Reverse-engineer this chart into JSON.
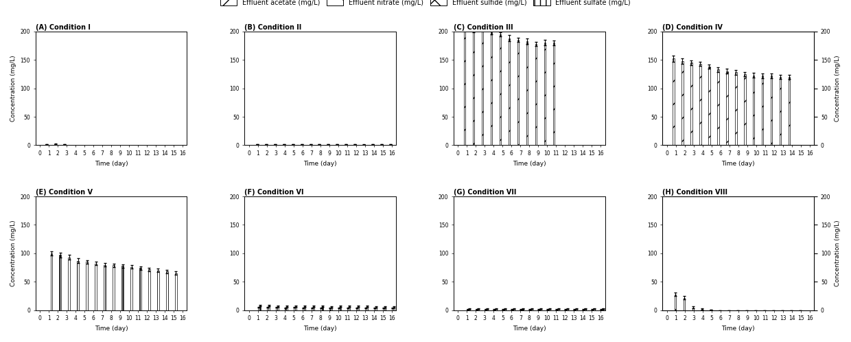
{
  "legend_labels": [
    "Effluent acetate (mg/L)",
    "Effluent nitrate (mg/L)",
    "Effluent sulfide (mg/L)",
    "Effluent sulfate (mg/L)"
  ],
  "subplot_titles": [
    "(A) Condition I",
    "(B) Condition II",
    "(C) Condition III",
    "(D) Condition IV",
    "(E) Condition V",
    "(F) Condition VI",
    "(G) Condition VII",
    "(H) Condition VIII"
  ],
  "ylim": [
    0,
    200
  ],
  "yticks": [
    0,
    50,
    100,
    150,
    200
  ],
  "xticks": [
    0,
    1,
    2,
    3,
    4,
    5,
    6,
    7,
    8,
    9,
    10,
    11,
    12,
    13,
    14,
    15,
    16
  ],
  "xlabel": "Time (day)",
  "ylabel_left": "Concentration (mg/L)",
  "ylabel_right": "Concentration (mg/L)",
  "conditions": {
    "A": {
      "days": [
        1,
        2,
        3
      ],
      "acetate": [
        1.5,
        2.0,
        1.8
      ],
      "acetate_err": [
        0.3,
        0.4,
        0.3
      ],
      "nitrate": [
        0,
        0,
        0
      ],
      "nitrate_err": [
        0,
        0,
        0
      ],
      "sulfide": [
        0,
        0,
        0
      ],
      "sulfide_err": [
        0,
        0,
        0
      ],
      "sulfate": [
        0,
        0,
        0
      ],
      "sulfate_err": [
        0,
        0,
        0
      ]
    },
    "B": {
      "days": [
        1,
        2,
        3,
        4,
        5,
        6,
        7,
        8,
        9,
        10,
        11,
        12,
        13,
        14,
        15,
        16
      ],
      "acetate": [
        0,
        0,
        0,
        0,
        0,
        0,
        0,
        0,
        0,
        0,
        0,
        0,
        0,
        0,
        0,
        0
      ],
      "acetate_err": [
        0,
        0,
        0,
        0,
        0,
        0,
        0,
        0,
        0,
        0,
        0,
        0,
        0,
        0,
        0,
        0
      ],
      "nitrate": [
        1.5,
        1.8,
        1.6,
        1.4,
        1.5,
        1.7,
        1.6,
        1.5,
        1.4,
        1.6,
        1.5,
        1.4,
        1.3,
        1.5,
        1.4,
        1.5
      ],
      "nitrate_err": [
        0.2,
        0.2,
        0.2,
        0.2,
        0.2,
        0.2,
        0.2,
        0.2,
        0.2,
        0.2,
        0.2,
        0.2,
        0.2,
        0.2,
        0.2,
        0.2
      ],
      "sulfide": [
        0,
        0,
        0,
        0,
        0,
        0,
        0,
        0,
        0,
        0,
        0,
        0,
        0,
        0,
        0,
        0
      ],
      "sulfide_err": [
        0,
        0,
        0,
        0,
        0,
        0,
        0,
        0,
        0,
        0,
        0,
        0,
        0,
        0,
        0,
        0
      ],
      "sulfate": [
        0,
        0,
        0,
        0,
        0,
        0,
        0,
        0,
        0,
        0,
        0,
        0,
        0,
        0,
        0,
        0
      ],
      "sulfate_err": [
        0,
        0,
        0,
        0,
        0,
        0,
        0,
        0,
        0,
        0,
        0,
        0,
        0,
        0,
        0,
        0
      ]
    },
    "C": {
      "days": [
        1,
        2,
        3,
        4,
        5,
        6,
        7,
        8,
        9,
        10,
        11
      ],
      "acetate": [
        210,
        202,
        208,
        200,
        195,
        188,
        185,
        183,
        178,
        180,
        180
      ],
      "acetate_err": [
        5,
        4,
        5,
        5,
        4,
        5,
        4,
        5,
        4,
        5,
        4
      ],
      "nitrate": [
        0,
        0,
        0,
        0,
        0,
        0,
        0,
        0,
        0,
        0,
        0
      ],
      "nitrate_err": [
        0,
        0,
        0,
        0,
        0,
        0,
        0,
        0,
        0,
        0,
        0
      ],
      "sulfide": [
        0,
        0,
        0,
        0,
        0,
        0,
        0,
        0,
        0,
        0,
        0
      ],
      "sulfide_err": [
        0,
        0,
        0,
        0,
        0,
        0,
        0,
        0,
        0,
        0,
        0
      ],
      "sulfate": [
        0,
        0,
        0,
        0,
        0,
        0,
        0,
        0,
        0,
        0,
        0
      ],
      "sulfate_err": [
        0,
        0,
        0,
        0,
        0,
        0,
        0,
        0,
        0,
        0,
        0
      ]
    },
    "D": {
      "days": [
        1,
        2,
        3,
        4,
        5,
        6,
        7,
        8,
        9,
        10,
        11,
        12,
        13,
        14
      ],
      "acetate": [
        152,
        148,
        145,
        143,
        138,
        133,
        130,
        128,
        125,
        123,
        122,
        122,
        120,
        120
      ],
      "acetate_err": [
        5,
        5,
        4,
        4,
        4,
        4,
        4,
        4,
        4,
        4,
        4,
        4,
        4,
        4
      ],
      "nitrate": [
        0,
        0,
        0,
        0,
        0,
        0,
        0,
        0,
        0,
        0,
        0,
        0,
        0,
        0
      ],
      "nitrate_err": [
        0,
        0,
        0,
        0,
        0,
        0,
        0,
        0,
        0,
        0,
        0,
        0,
        0,
        0
      ],
      "sulfide": [
        0,
        0,
        0,
        0,
        0,
        0,
        0,
        0,
        0,
        0,
        0,
        0,
        0,
        0
      ],
      "sulfide_err": [
        0,
        0,
        0,
        0,
        0,
        0,
        0,
        0,
        0,
        0,
        0,
        0,
        0,
        0
      ],
      "sulfate": [
        0,
        0,
        0,
        0,
        0,
        0,
        0,
        0,
        0,
        0,
        0,
        0,
        0,
        0
      ],
      "sulfate_err": [
        0,
        0,
        0,
        0,
        0,
        0,
        0,
        0,
        0,
        0,
        0,
        0,
        0,
        0
      ]
    },
    "E": {
      "days": [
        1,
        2,
        3,
        4,
        5,
        6,
        7,
        8,
        9,
        10,
        11,
        12,
        13,
        14,
        15
      ],
      "acetate": [
        0,
        0,
        0,
        0,
        0,
        0,
        0,
        0,
        0,
        0,
        0,
        0,
        0,
        0,
        0
      ],
      "acetate_err": [
        0,
        0,
        0,
        0,
        0,
        0,
        0,
        0,
        0,
        0,
        0,
        0,
        0,
        0,
        0
      ],
      "nitrate": [
        0,
        0,
        0,
        0,
        0,
        0,
        0,
        0,
        0,
        0,
        0,
        0,
        0,
        0,
        0
      ],
      "nitrate_err": [
        0,
        0,
        0,
        0,
        0,
        0,
        0,
        0,
        0,
        0,
        0,
        0,
        0,
        0,
        0
      ],
      "sulfide": [
        0,
        0,
        0,
        0,
        0,
        0,
        0,
        0,
        0,
        0,
        0,
        0,
        0,
        0,
        0
      ],
      "sulfide_err": [
        0,
        0,
        0,
        0,
        0,
        0,
        0,
        0,
        0,
        0,
        0,
        0,
        0,
        0,
        0
      ],
      "sulfate": [
        100,
        97,
        93,
        87,
        85,
        82,
        80,
        79,
        78,
        76,
        74,
        72,
        70,
        68,
        65
      ],
      "sulfate_err": [
        4,
        4,
        4,
        4,
        3,
        3,
        3,
        3,
        3,
        3,
        3,
        3,
        3,
        3,
        3
      ]
    },
    "F": {
      "days": [
        1,
        2,
        3,
        4,
        5,
        6,
        7,
        8,
        9,
        10,
        11,
        12,
        13,
        14,
        15,
        16
      ],
      "acetate": [
        0,
        0,
        0,
        0,
        0,
        0,
        0,
        0,
        0,
        0,
        0,
        0,
        0,
        0,
        0,
        0
      ],
      "acetate_err": [
        0,
        0,
        0,
        0,
        0,
        0,
        0,
        0,
        0,
        0,
        0,
        0,
        0,
        0,
        0,
        0
      ],
      "nitrate": [
        0,
        0,
        0,
        0,
        0,
        0,
        0,
        0,
        0,
        0,
        0,
        0,
        0,
        0,
        0,
        0
      ],
      "nitrate_err": [
        0,
        0,
        0,
        0,
        0,
        0,
        0,
        0,
        0,
        0,
        0,
        0,
        0,
        0,
        0,
        0
      ],
      "sulfide": [
        5,
        5,
        5,
        4,
        5,
        4,
        4,
        4,
        4,
        4,
        4,
        4,
        4,
        4,
        4,
        4
      ],
      "sulfide_err": [
        1,
        1,
        1,
        1,
        1,
        1,
        1,
        1,
        1,
        1,
        1,
        1,
        1,
        1,
        1,
        1
      ],
      "sulfate": [
        8,
        8,
        7,
        7,
        7,
        7,
        7,
        7,
        6,
        7,
        7,
        7,
        7,
        6,
        6,
        6
      ],
      "sulfate_err": [
        1,
        1,
        1,
        1,
        1,
        1,
        1,
        1,
        1,
        1,
        1,
        1,
        1,
        1,
        1,
        1
      ]
    },
    "G": {
      "days": [
        1,
        2,
        3,
        4,
        5,
        6,
        7,
        8,
        9,
        10,
        11,
        12,
        13,
        14,
        15,
        16
      ],
      "acetate": [
        0,
        0,
        0,
        0,
        0,
        0,
        0,
        0,
        0,
        0,
        0,
        0,
        0,
        0,
        0,
        0
      ],
      "acetate_err": [
        0,
        0,
        0,
        0,
        0,
        0,
        0,
        0,
        0,
        0,
        0,
        0,
        0,
        0,
        0,
        0
      ],
      "nitrate": [
        0,
        0,
        0,
        0,
        0,
        0,
        0,
        0,
        0,
        0,
        0,
        0,
        0,
        0,
        0,
        0
      ],
      "nitrate_err": [
        0,
        0,
        0,
        0,
        0,
        0,
        0,
        0,
        0,
        0,
        0,
        0,
        0,
        0,
        0,
        0
      ],
      "sulfide": [
        2,
        2,
        2,
        2,
        2,
        2,
        2,
        2,
        2,
        2,
        2,
        2,
        2,
        2,
        2,
        2
      ],
      "sulfide_err": [
        0.5,
        0.5,
        0.5,
        0.5,
        0.5,
        0.5,
        0.5,
        0.5,
        0.5,
        0.5,
        0.5,
        0.5,
        0.5,
        0.5,
        0.5,
        0.5
      ],
      "sulfate": [
        3,
        3,
        3,
        3,
        3,
        3,
        3,
        3,
        3,
        3,
        3,
        3,
        3,
        3,
        3,
        3
      ],
      "sulfate_err": [
        0.5,
        0.5,
        0.5,
        0.5,
        0.5,
        0.5,
        0.5,
        0.5,
        0.5,
        0.5,
        0.5,
        0.5,
        0.5,
        0.5,
        0.5,
        0.5
      ]
    },
    "H": {
      "days": [
        1,
        2,
        3,
        4,
        5,
        6,
        7,
        8,
        9,
        10,
        11,
        12,
        13,
        14,
        15
      ],
      "acetate": [
        0,
        0,
        0,
        0,
        0,
        0,
        0,
        0,
        0,
        0,
        0,
        0,
        0,
        0,
        0
      ],
      "acetate_err": [
        0,
        0,
        0,
        0,
        0,
        0,
        0,
        0,
        0,
        0,
        0,
        0,
        0,
        0,
        0
      ],
      "nitrate": [
        28,
        22,
        5,
        2,
        1,
        0,
        0,
        0,
        0,
        0,
        0,
        0,
        0,
        0,
        0
      ],
      "nitrate_err": [
        3,
        3,
        2,
        1,
        0.5,
        0,
        0,
        0,
        0,
        0,
        0,
        0,
        0,
        0,
        0
      ],
      "sulfide": [
        0,
        0,
        0,
        0,
        0,
        0,
        0,
        0,
        0,
        0,
        0,
        0,
        0,
        0,
        0
      ],
      "sulfide_err": [
        0,
        0,
        0,
        0,
        0,
        0,
        0,
        0,
        0,
        0,
        0,
        0,
        0,
        0,
        0
      ],
      "sulfate": [
        0,
        0,
        0,
        0,
        0,
        0,
        0,
        0,
        0,
        0,
        0,
        0,
        0,
        0,
        0
      ],
      "sulfate_err": [
        0,
        0,
        0,
        0,
        0,
        0,
        0,
        0,
        0,
        0,
        0,
        0,
        0,
        0,
        0
      ]
    }
  }
}
